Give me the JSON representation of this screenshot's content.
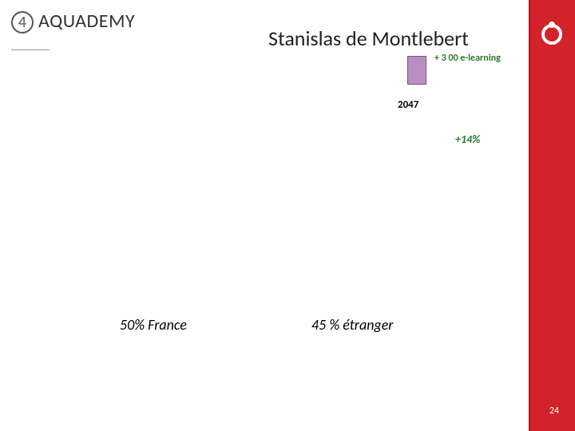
{
  "slide": {
    "number_in_circle": "4",
    "title": "AQUADEMY",
    "subtitle": "Stanislas de Montlebert",
    "elearning_note": "+ 3 00 e-learning",
    "year_label": "2047",
    "growth_pct": "+14%",
    "france_pct": "50% France",
    "etranger_pct": "45 % étranger",
    "page_number": "24"
  },
  "styles": {
    "red_bar_color": "#d2232a",
    "small_bar_fill": "#b88fc0",
    "small_bar_border": "#7a4f85",
    "green_text": "#2a7a2a",
    "circle_border": "#555555",
    "underline_color": "#999999",
    "background": "#ffffff"
  }
}
